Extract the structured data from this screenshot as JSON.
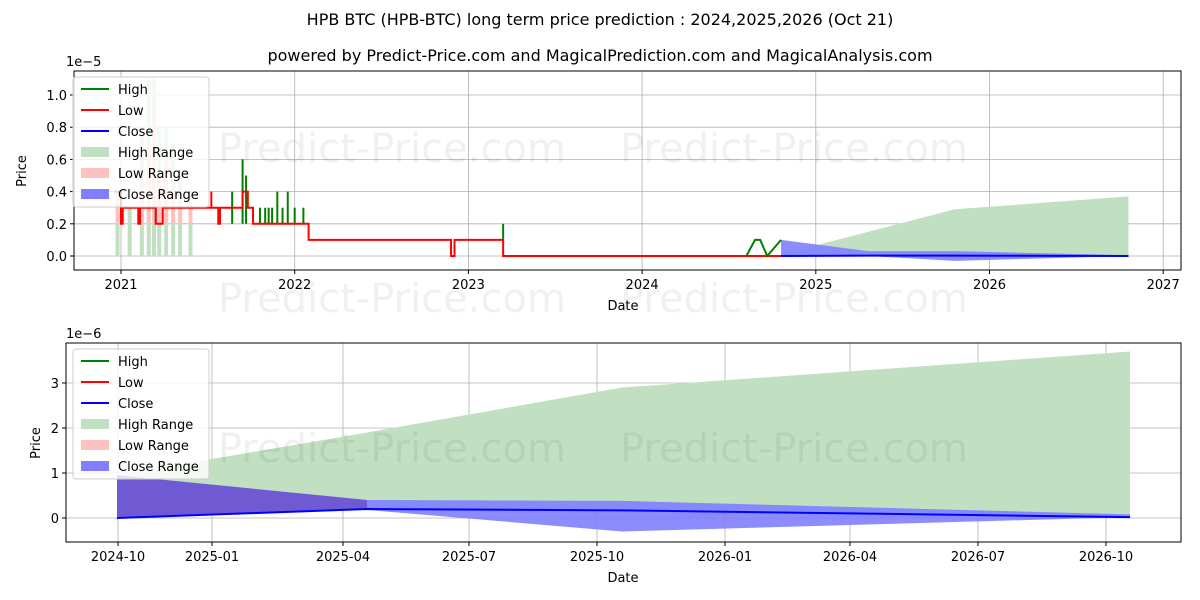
{
  "title": "HPB BTC (HPB-BTC) long term price prediction : 2024,2025,2026 (Oct 21)",
  "subtitle": "powered by Predict-Price.com and MagicalPrediction.com and MagicalAnalysis.com",
  "watermark": "Predict-Price.com",
  "colors": {
    "high": "#008000",
    "low": "#ff0000",
    "close": "#0000ff",
    "high_range": "#c1e0c1",
    "low_range": "#ffc0c0",
    "close_range": "#7f7fff",
    "grid": "#b0b0b0"
  },
  "legend": [
    "High",
    "Low",
    "Close",
    "High Range",
    "Low Range",
    "Close Range"
  ],
  "chart_data": [
    {
      "type": "line",
      "title": "Long term history and prediction",
      "xlabel": "Date",
      "ylabel": "Price",
      "y_scale_label": "1e−5",
      "xticks": [
        "2021",
        "2022",
        "2023",
        "2024",
        "2025",
        "2026",
        "2027"
      ],
      "yticks": [
        "0.0",
        "0.2",
        "0.4",
        "0.6",
        "0.8",
        "1.0"
      ],
      "ylim": [
        -9e-08,
        1.15e-05
      ],
      "grid": true,
      "legend_position": "upper left",
      "series": [
        {
          "name": "Low",
          "x": [
            2020.9,
            2021.0,
            2021.05,
            2021.3,
            2021.5,
            2021.6,
            2021.75,
            2021.9,
            2022.0,
            2022.08,
            2022.9,
            2023.2,
            2024.8
          ],
          "values": [
            4e-07,
            3e-07,
            3e-07,
            3e-07,
            3e-07,
            3e-07,
            2e-07,
            2e-07,
            2e-07,
            1e-07,
            1e-07,
            0.0,
            0.0
          ]
        },
        {
          "name": "High",
          "x": [
            2021.7,
            2021.72,
            2022.3,
            2022.5,
            2022.97,
            2024.6,
            2024.65,
            2024.7,
            2024.8
          ],
          "values": [
            6e-07,
            5e-07,
            2e-07,
            2e-07,
            2e-07,
            0.0,
            1e-07,
            0.0,
            1e-07
          ]
        },
        {
          "name": "Close",
          "x": [
            2024.8,
            2025.3,
            2025.8,
            2026.8
          ],
          "values": [
            0.0,
            2e-08,
            2e-08,
            0.0
          ]
        },
        {
          "name": "High Range",
          "x": [
            2021.15,
            2021.25,
            2021.35,
            2021.45,
            2024.8,
            2025.8,
            2026.8
          ],
          "values": [
            8e-06,
            1.1e-05,
            8e-06,
            5e-06,
            1e-07,
            2.9e-06,
            3.7e-06
          ]
        }
      ]
    },
    {
      "type": "area",
      "title": "Prediction detail",
      "xlabel": "Date",
      "ylabel": "Price",
      "y_scale_label": "1e−6",
      "xticks": [
        "2024-10",
        "2025-01",
        "2025-04",
        "2025-07",
        "2025-10",
        "2026-01",
        "2026-04",
        "2026-07",
        "2026-10"
      ],
      "yticks": [
        "0",
        "1",
        "2",
        "3"
      ],
      "ylim": [
        -5.5e-07,
        3.8e-06
      ],
      "grid": true,
      "legend_position": "upper left",
      "x": [
        "2024-10-21",
        "2025-04-21",
        "2025-10-21",
        "2026-10-21"
      ],
      "series": [
        {
          "name": "High Range upper",
          "values": [
            9.5e-07,
            1.9e-06,
            2.9e-06,
            3.7e-06
          ]
        },
        {
          "name": "High Range lower",
          "values": [
            0.0,
            2e-07,
            2e-07,
            5e-08
          ]
        },
        {
          "name": "Close Range upper",
          "values": [
            9.5e-07,
            4e-07,
            3.8e-07,
            8e-08
          ]
        },
        {
          "name": "Close Range lower",
          "values": [
            0.0,
            1.8e-07,
            -3e-07,
            2e-08
          ]
        },
        {
          "name": "Close",
          "values": [
            0.0,
            2e-07,
            1.7e-07,
            2e-08
          ]
        }
      ]
    }
  ]
}
